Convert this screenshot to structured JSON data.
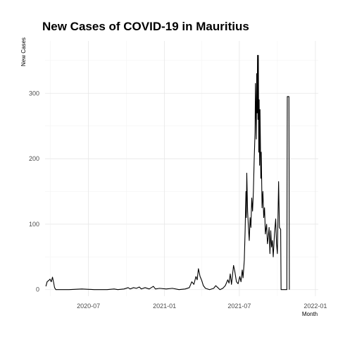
{
  "chart_data": {
    "type": "line",
    "title": "New Cases of COVID-19 in Mauritius",
    "xlabel": "Month",
    "ylabel": "New Cases",
    "xlim": [
      "2020-03-18",
      "2022-01-08"
    ],
    "ylim": [
      -10,
      380
    ],
    "x_ticks": [
      {
        "date": "2020-07-01",
        "label": "2020-07"
      },
      {
        "date": "2021-01-01",
        "label": "2021-01"
      },
      {
        "date": "2021-07-01",
        "label": "2021-07"
      },
      {
        "date": "2022-01-01",
        "label": "2022-01"
      }
    ],
    "y_ticks": [
      0,
      100,
      200,
      300
    ],
    "grid": true,
    "legend": "none",
    "series": [
      {
        "color": "#000000",
        "points": [
          [
            "2020-03-20",
            5
          ],
          [
            "2020-03-23",
            12
          ],
          [
            "2020-03-27",
            14
          ],
          [
            "2020-03-30",
            16
          ],
          [
            "2020-04-02",
            12
          ],
          [
            "2020-04-05",
            19
          ],
          [
            "2020-04-08",
            10
          ],
          [
            "2020-04-10",
            3
          ],
          [
            "2020-04-13",
            0
          ],
          [
            "2020-05-15",
            0
          ],
          [
            "2020-06-15",
            1
          ],
          [
            "2020-07-15",
            0
          ],
          [
            "2020-08-15",
            0
          ],
          [
            "2020-09-01",
            1
          ],
          [
            "2020-09-10",
            0
          ],
          [
            "2020-09-25",
            1
          ],
          [
            "2020-10-05",
            3
          ],
          [
            "2020-10-10",
            1
          ],
          [
            "2020-10-18",
            3
          ],
          [
            "2020-10-25",
            2
          ],
          [
            "2020-11-01",
            4
          ],
          [
            "2020-11-06",
            1
          ],
          [
            "2020-11-15",
            3
          ],
          [
            "2020-11-25",
            1
          ],
          [
            "2020-12-05",
            5
          ],
          [
            "2020-12-10",
            1
          ],
          [
            "2020-12-20",
            2
          ],
          [
            "2021-01-05",
            1
          ],
          [
            "2021-01-20",
            2
          ],
          [
            "2021-02-05",
            0
          ],
          [
            "2021-02-20",
            1
          ],
          [
            "2021-03-02",
            3
          ],
          [
            "2021-03-08",
            12
          ],
          [
            "2021-03-13",
            8
          ],
          [
            "2021-03-18",
            20
          ],
          [
            "2021-03-21",
            15
          ],
          [
            "2021-03-24",
            32
          ],
          [
            "2021-03-28",
            20
          ],
          [
            "2021-04-01",
            14
          ],
          [
            "2021-04-05",
            6
          ],
          [
            "2021-04-10",
            2
          ],
          [
            "2021-04-20",
            0
          ],
          [
            "2021-04-30",
            2
          ],
          [
            "2021-05-05",
            6
          ],
          [
            "2021-05-10",
            3
          ],
          [
            "2021-05-15",
            0
          ],
          [
            "2021-05-22",
            2
          ],
          [
            "2021-05-28",
            6
          ],
          [
            "2021-06-03",
            15
          ],
          [
            "2021-06-06",
            10
          ],
          [
            "2021-06-09",
            24
          ],
          [
            "2021-06-12",
            8
          ],
          [
            "2021-06-17",
            37
          ],
          [
            "2021-06-20",
            28
          ],
          [
            "2021-06-24",
            12
          ],
          [
            "2021-06-28",
            9
          ],
          [
            "2021-07-02",
            20
          ],
          [
            "2021-07-05",
            12
          ],
          [
            "2021-07-08",
            30
          ],
          [
            "2021-07-10",
            18
          ],
          [
            "2021-07-13",
            45
          ],
          [
            "2021-07-15",
            90
          ],
          [
            "2021-07-17",
            150
          ],
          [
            "2021-07-18",
            110
          ],
          [
            "2021-07-19",
            178
          ],
          [
            "2021-07-21",
            120
          ],
          [
            "2021-07-23",
            95
          ],
          [
            "2021-07-25",
            75
          ],
          [
            "2021-07-27",
            110
          ],
          [
            "2021-07-29",
            95
          ],
          [
            "2021-07-31",
            140
          ],
          [
            "2021-08-02",
            120
          ],
          [
            "2021-08-04",
            150
          ],
          [
            "2021-08-06",
            200
          ],
          [
            "2021-08-08",
            240
          ],
          [
            "2021-08-09",
            315
          ],
          [
            "2021-08-11",
            230
          ],
          [
            "2021-08-12",
            330
          ],
          [
            "2021-08-13",
            270
          ],
          [
            "2021-08-14",
            358
          ],
          [
            "2021-08-15",
            260
          ],
          [
            "2021-08-16",
            358
          ],
          [
            "2021-08-17",
            210
          ],
          [
            "2021-08-18",
            290
          ],
          [
            "2021-08-19",
            190
          ],
          [
            "2021-08-20",
            275
          ],
          [
            "2021-08-22",
            170
          ],
          [
            "2021-08-23",
            210
          ],
          [
            "2021-08-25",
            125
          ],
          [
            "2021-08-27",
            150
          ],
          [
            "2021-08-29",
            110
          ],
          [
            "2021-08-31",
            125
          ],
          [
            "2021-09-02",
            85
          ],
          [
            "2021-09-05",
            100
          ],
          [
            "2021-09-07",
            70
          ],
          [
            "2021-09-09",
            80
          ],
          [
            "2021-09-11",
            95
          ],
          [
            "2021-09-13",
            55
          ],
          [
            "2021-09-15",
            90
          ],
          [
            "2021-09-17",
            65
          ],
          [
            "2021-09-19",
            75
          ],
          [
            "2021-09-21",
            50
          ],
          [
            "2021-09-24",
            85
          ],
          [
            "2021-09-27",
            108
          ],
          [
            "2021-09-29",
            70
          ],
          [
            "2021-10-01",
            55
          ],
          [
            "2021-10-04",
            165
          ],
          [
            "2021-10-06",
            95
          ],
          [
            "2021-10-09",
            92
          ],
          [
            "2021-10-10",
            0
          ],
          [
            "2021-10-24",
            0
          ],
          [
            "2021-10-25",
            295
          ],
          [
            "2021-10-29",
            295
          ],
          [
            "2021-10-30",
            0
          ]
        ]
      }
    ]
  }
}
